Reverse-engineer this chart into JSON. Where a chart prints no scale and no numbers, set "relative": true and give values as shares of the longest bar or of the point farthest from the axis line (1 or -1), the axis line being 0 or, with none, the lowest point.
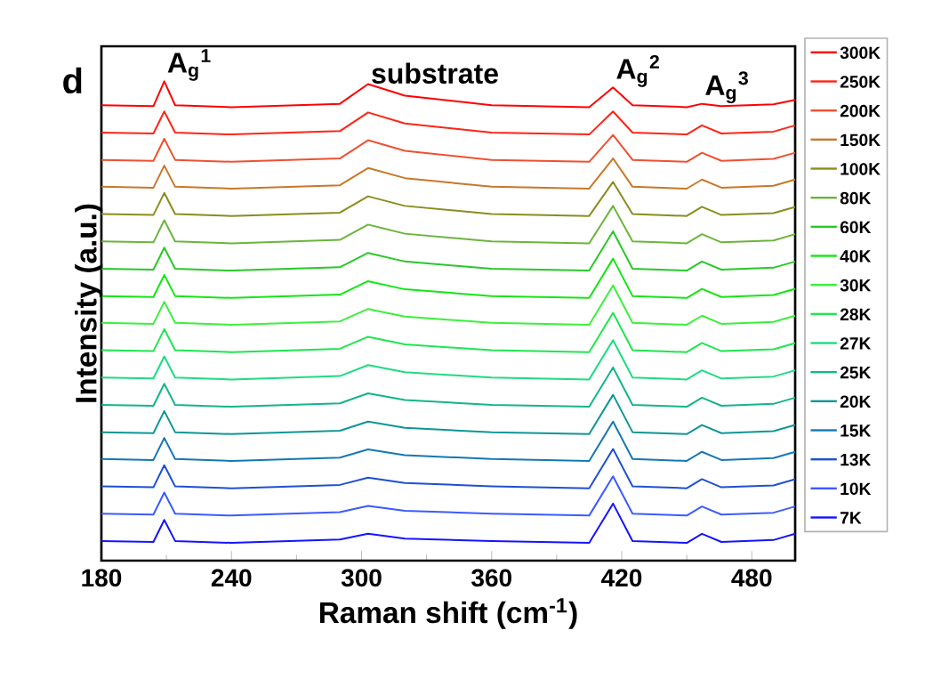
{
  "chart_data": {
    "type": "line",
    "relative": true,
    "xlabel": "Raman shift (cm$^{-1}$)",
    "ylabel": "Intensity (a.u.)",
    "xlim": [
      180,
      500
    ],
    "xticks": [
      180,
      240,
      300,
      360,
      420,
      480
    ],
    "legend": "right",
    "annotations": [
      "d",
      {
        "text": "A$_{g}$$^{1}$",
        "x": 209,
        "y": 1
      },
      {
        "text": "substrate",
        "x": 303,
        "y": 0.994
      },
      {
        "text": "A$_{g}$$^{2}$",
        "x": 416,
        "y": 0.987
      },
      {
        "text": "A$_{g}$$^{3}$",
        "x": 457,
        "y": 0.953
      }
    ],
    "x": [
      180,
      204,
      209,
      214,
      240,
      290,
      303,
      320,
      360,
      405,
      416,
      425,
      450,
      457,
      466,
      490,
      500
    ],
    "series": [
      {
        "name": "300K",
        "color": "#ff0000",
        "values": [
          0.95,
          0.948,
          1,
          0.95,
          0.946,
          0.953,
          0.994,
          0.97,
          0.95,
          0.946,
          0.987,
          0.95,
          0.946,
          0.953,
          0.948,
          0.952,
          0.961
        ]
      },
      {
        "name": "250K",
        "color": "#ff2414",
        "values": [
          0.893,
          0.891,
          0.937,
          0.893,
          0.889,
          0.896,
          0.935,
          0.912,
          0.893,
          0.889,
          0.937,
          0.893,
          0.889,
          0.908,
          0.891,
          0.895,
          0.908
        ]
      },
      {
        "name": "200K",
        "color": "#f05030",
        "values": [
          0.836,
          0.834,
          0.88,
          0.836,
          0.832,
          0.839,
          0.877,
          0.855,
          0.836,
          0.832,
          0.888,
          0.836,
          0.832,
          0.851,
          0.834,
          0.838,
          0.851
        ]
      },
      {
        "name": "150K",
        "color": "#c87828",
        "values": [
          0.78,
          0.778,
          0.824,
          0.78,
          0.776,
          0.783,
          0.819,
          0.798,
          0.78,
          0.776,
          0.839,
          0.78,
          0.776,
          0.795,
          0.778,
          0.782,
          0.795
        ]
      },
      {
        "name": "100K",
        "color": "#8c8c1e",
        "values": [
          0.723,
          0.721,
          0.767,
          0.723,
          0.719,
          0.726,
          0.76,
          0.74,
          0.723,
          0.719,
          0.79,
          0.723,
          0.719,
          0.738,
          0.721,
          0.725,
          0.738
        ]
      },
      {
        "name": "80K",
        "color": "#6cb43c",
        "values": [
          0.666,
          0.664,
          0.71,
          0.666,
          0.662,
          0.669,
          0.701,
          0.682,
          0.666,
          0.662,
          0.74,
          0.666,
          0.662,
          0.681,
          0.664,
          0.668,
          0.681
        ]
      },
      {
        "name": "60K",
        "color": "#28c828",
        "values": [
          0.609,
          0.607,
          0.653,
          0.609,
          0.605,
          0.612,
          0.642,
          0.624,
          0.609,
          0.605,
          0.687,
          0.609,
          0.605,
          0.624,
          0.607,
          0.611,
          0.624
        ]
      },
      {
        "name": "40K",
        "color": "#14e614",
        "values": [
          0.552,
          0.55,
          0.596,
          0.552,
          0.548,
          0.555,
          0.583,
          0.566,
          0.552,
          0.548,
          0.63,
          0.552,
          0.548,
          0.567,
          0.55,
          0.554,
          0.567
        ]
      },
      {
        "name": "30K",
        "color": "#3cf03c",
        "values": [
          0.496,
          0.494,
          0.54,
          0.496,
          0.492,
          0.499,
          0.525,
          0.509,
          0.496,
          0.492,
          0.574,
          0.496,
          0.492,
          0.511,
          0.494,
          0.498,
          0.511
        ]
      },
      {
        "name": "28K",
        "color": "#1ee650",
        "values": [
          0.439,
          0.437,
          0.483,
          0.439,
          0.435,
          0.442,
          0.467,
          0.451,
          0.439,
          0.435,
          0.517,
          0.439,
          0.435,
          0.454,
          0.437,
          0.441,
          0.454
        ]
      },
      {
        "name": "27K",
        "color": "#1edc82",
        "values": [
          0.382,
          0.38,
          0.426,
          0.382,
          0.378,
          0.385,
          0.408,
          0.393,
          0.382,
          0.378,
          0.46,
          0.382,
          0.378,
          0.397,
          0.38,
          0.384,
          0.397
        ]
      },
      {
        "name": "25K",
        "color": "#14b48c",
        "values": [
          0.325,
          0.323,
          0.369,
          0.325,
          0.321,
          0.328,
          0.349,
          0.335,
          0.325,
          0.321,
          0.403,
          0.325,
          0.321,
          0.34,
          0.323,
          0.327,
          0.34
        ]
      },
      {
        "name": "20K",
        "color": "#0f9696",
        "values": [
          0.268,
          0.266,
          0.312,
          0.268,
          0.264,
          0.271,
          0.29,
          0.277,
          0.268,
          0.264,
          0.346,
          0.268,
          0.264,
          0.283,
          0.266,
          0.27,
          0.283
        ]
      },
      {
        "name": "15K",
        "color": "#1478b4",
        "values": [
          0.212,
          0.21,
          0.256,
          0.212,
          0.208,
          0.215,
          0.232,
          0.22,
          0.212,
          0.208,
          0.29,
          0.212,
          0.208,
          0.227,
          0.21,
          0.214,
          0.227
        ]
      },
      {
        "name": "13K",
        "color": "#1e50d2",
        "values": [
          0.155,
          0.153,
          0.199,
          0.155,
          0.151,
          0.158,
          0.173,
          0.162,
          0.155,
          0.151,
          0.233,
          0.155,
          0.151,
          0.17,
          0.153,
          0.157,
          0.17
        ]
      },
      {
        "name": "10K",
        "color": "#3c5aff",
        "values": [
          0.098,
          0.096,
          0.142,
          0.098,
          0.094,
          0.101,
          0.114,
          0.104,
          0.098,
          0.094,
          0.176,
          0.098,
          0.094,
          0.113,
          0.096,
          0.1,
          0.113
        ]
      },
      {
        "name": "7K",
        "color": "#1414ff",
        "values": [
          0.041,
          0.039,
          0.085,
          0.041,
          0.037,
          0.044,
          0.056,
          0.046,
          0.041,
          0.037,
          0.119,
          0.041,
          0.037,
          0.056,
          0.039,
          0.043,
          0.056
        ]
      }
    ]
  }
}
